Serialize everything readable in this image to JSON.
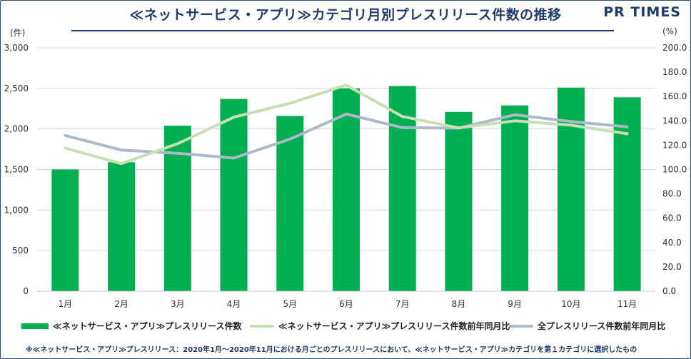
{
  "header": {
    "title": "≪ネットサービス・アプリ≫カテゴリ月別プレスリリース件数の推移",
    "logo": "PR TIMES"
  },
  "units": {
    "left": "(件)",
    "right": "(%)"
  },
  "footnote": "※≪ネットサービス・アプリ≫プレスリリース：2020年1月〜2020年11月における月ごとのプレスリリースにおいて、≪ネットサービス・アプリ≫カテゴリを第１カテゴリに選択したもの",
  "colors": {
    "bar": "#00b050",
    "line_category": "#c6e0b4",
    "line_all": "#adb9ca",
    "title": "#1f3a6b"
  },
  "chart_data": {
    "type": "bar",
    "categories": [
      "1月",
      "2月",
      "3月",
      "4月",
      "5月",
      "6月",
      "7月",
      "8月",
      "9月",
      "10月",
      "11月"
    ],
    "series": [
      {
        "name": "≪ネットサービス・アプリ≫プレスリリース件数",
        "type": "bar",
        "axis": "left",
        "values": [
          1500,
          1590,
          2040,
          2370,
          2160,
          2500,
          2530,
          2210,
          2290,
          2510,
          2390
        ]
      },
      {
        "name": "≪ネットサービス・アプリ≫プレスリリース件数前年同月比",
        "type": "line",
        "axis": "right",
        "values": [
          117.6,
          104.8,
          121.2,
          143.0,
          154.4,
          169.4,
          143.6,
          134.2,
          140.0,
          136.4,
          129.4
        ]
      },
      {
        "name": "全プレスリリース件数前年同月比",
        "type": "line",
        "axis": "right",
        "values": [
          128.0,
          116.0,
          113.4,
          109.4,
          125.0,
          145.6,
          134.4,
          134.0,
          145.0,
          139.4,
          135.0
        ]
      }
    ],
    "ylim_left": [
      0,
      3000
    ],
    "yticks_left": [
      "0",
      "500",
      "1,000",
      "1,500",
      "2,000",
      "2,500",
      "3,000"
    ],
    "ylim_right": [
      0,
      200
    ],
    "yticks_right": [
      "0.0",
      "20.0",
      "40.0",
      "60.0",
      "80.0",
      "100.0",
      "120.0",
      "140.0",
      "160.0",
      "180.0",
      "200.0"
    ],
    "grid": true,
    "legend_position": "bottom"
  }
}
